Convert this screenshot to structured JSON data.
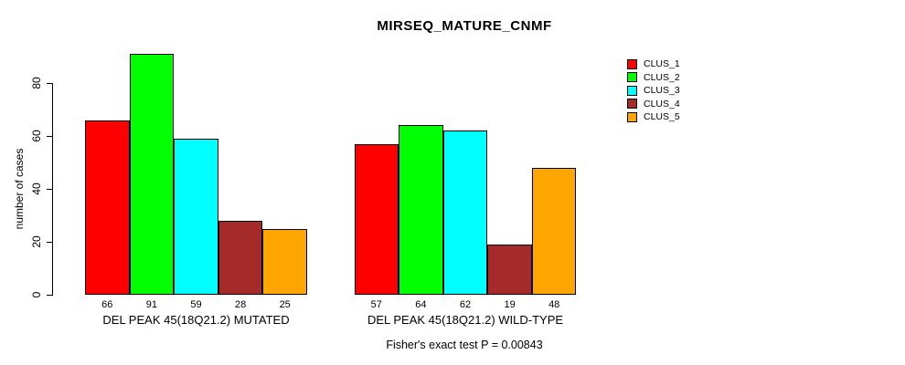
{
  "chart_data": {
    "type": "bar",
    "title": "MIRSEQ_MATURE_CNMF",
    "ylabel": "number of cases",
    "xlabel": "",
    "ylim": [
      0,
      91
    ],
    "yticks": [
      0,
      20,
      40,
      60,
      80
    ],
    "grid": false,
    "legend_position": "top-right",
    "bar_value_labels": true,
    "clusters": [
      {
        "name": "CLUS_1",
        "color": "#FF0000"
      },
      {
        "name": "CLUS_2",
        "color": "#00FF00"
      },
      {
        "name": "CLUS_3",
        "color": "#00FFFF"
      },
      {
        "name": "CLUS_4",
        "color": "#A52A2A"
      },
      {
        "name": "CLUS_5",
        "color": "#FFA500"
      }
    ],
    "groups": [
      {
        "label": "DEL PEAK 45(18Q21.2) MUTATED",
        "values": [
          66,
          91,
          59,
          28,
          25
        ]
      },
      {
        "label": "DEL PEAK 45(18Q21.2) WILD-TYPE",
        "values": [
          57,
          64,
          62,
          19,
          48
        ]
      }
    ],
    "footnote": "Fisher's exact test P = 0.00843"
  }
}
